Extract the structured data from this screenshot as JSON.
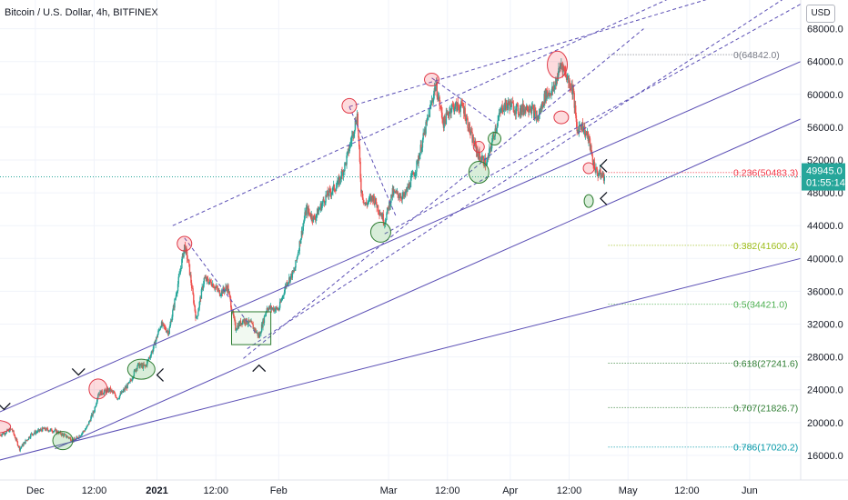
{
  "header": {
    "title": "Bitcoin / U.S. Dollar, 4h, BITFINEX",
    "currency_button": "USD"
  },
  "price_tag": {
    "price": "49945.0",
    "countdown": "01:55:14",
    "color": "#26a69a"
  },
  "colors": {
    "up": "#26a69a",
    "down": "#ef5350",
    "trendline": "#5b4fb5",
    "dashed": "#5b4fb5"
  },
  "chart_data": {
    "type": "candlestick",
    "title": "Bitcoin / U.S. Dollar, 4h, BITFINEX",
    "ylim": [
      13000,
      71500
    ],
    "y_ticks": [
      16000,
      20000,
      24000,
      28000,
      32000,
      36000,
      40000,
      44000,
      48000,
      52000,
      56000,
      60000,
      64000,
      68000
    ],
    "y_tick_labels": [
      "16000.0",
      "20000.0",
      "24000.0",
      "28000.0",
      "32000.0",
      "36000.0",
      "40000.0",
      "44000.0",
      "48000.0",
      "52000.0",
      "56000.0",
      "60000.0",
      "64000.0",
      "68000.0"
    ],
    "x_tick_labels": [
      {
        "label": "Dec",
        "date": "2020-12-01",
        "bold": false
      },
      {
        "label": "12:00",
        "date": "2020-12-16",
        "bold": false
      },
      {
        "label": "2021",
        "date": "2021-01-01",
        "bold": true
      },
      {
        "label": "12:00",
        "date": "2021-01-16",
        "bold": false
      },
      {
        "label": "Feb",
        "date": "2021-02-01",
        "bold": false
      },
      {
        "label": "Mar",
        "date": "2021-03-01",
        "bold": false
      },
      {
        "label": "12:00",
        "date": "2021-03-16",
        "bold": false
      },
      {
        "label": "Apr",
        "date": "2021-04-01",
        "bold": false
      },
      {
        "label": "12:00",
        "date": "2021-04-16",
        "bold": false
      },
      {
        "label": "May",
        "date": "2021-05-01",
        "bold": false
      },
      {
        "label": "12:00",
        "date": "2021-05-16",
        "bold": false
      },
      {
        "label": "Jun",
        "date": "2021-06-01",
        "bold": false
      }
    ],
    "x_domain": [
      "2020-11-22",
      "2021-06-14"
    ],
    "price_path": [
      [
        "2020-11-22",
        18500
      ],
      [
        "2020-11-25",
        19200
      ],
      [
        "2020-11-27",
        16800
      ],
      [
        "2020-11-30",
        18600
      ],
      [
        "2020-12-03",
        19200
      ],
      [
        "2020-12-06",
        19000
      ],
      [
        "2020-12-09",
        18300
      ],
      [
        "2020-12-11",
        17800
      ],
      [
        "2020-12-14",
        19300
      ],
      [
        "2020-12-16",
        21500
      ],
      [
        "2020-12-17",
        23500
      ],
      [
        "2020-12-20",
        24000
      ],
      [
        "2020-12-22",
        23000
      ],
      [
        "2020-12-25",
        24800
      ],
      [
        "2020-12-27",
        27000
      ],
      [
        "2020-12-29",
        26800
      ],
      [
        "2020-12-31",
        29000
      ],
      [
        "2021-01-02",
        32000
      ],
      [
        "2021-01-04",
        31000
      ],
      [
        "2021-01-06",
        36000
      ],
      [
        "2021-01-08",
        41500
      ],
      [
        "2021-01-09",
        39500
      ],
      [
        "2021-01-11",
        32500
      ],
      [
        "2021-01-13",
        37500
      ],
      [
        "2021-01-15",
        37000
      ],
      [
        "2021-01-17",
        35800
      ],
      [
        "2021-01-19",
        36500
      ],
      [
        "2021-01-21",
        31500
      ],
      [
        "2021-01-23",
        32500
      ],
      [
        "2021-01-25",
        32000
      ],
      [
        "2021-01-27",
        30500
      ],
      [
        "2021-01-29",
        34000
      ],
      [
        "2021-02-01",
        33800
      ],
      [
        "2021-02-03",
        37000
      ],
      [
        "2021-02-05",
        38500
      ],
      [
        "2021-02-08",
        46000
      ],
      [
        "2021-02-10",
        44800
      ],
      [
        "2021-02-13",
        47500
      ],
      [
        "2021-02-16",
        49000
      ],
      [
        "2021-02-18",
        51500
      ],
      [
        "2021-02-21",
        57500
      ],
      [
        "2021-02-22",
        48500
      ],
      [
        "2021-02-23",
        46500
      ],
      [
        "2021-02-25",
        47500
      ],
      [
        "2021-02-28",
        44500
      ],
      [
        "2021-03-02",
        48000
      ],
      [
        "2021-03-05",
        47500
      ],
      [
        "2021-03-08",
        51000
      ],
      [
        "2021-03-11",
        57000
      ],
      [
        "2021-03-13",
        61200
      ],
      [
        "2021-03-15",
        56500
      ],
      [
        "2021-03-17",
        58500
      ],
      [
        "2021-03-20",
        58500
      ],
      [
        "2021-03-22",
        55000
      ],
      [
        "2021-03-24",
        52500
      ],
      [
        "2021-03-26",
        51500
      ],
      [
        "2021-03-28",
        55500
      ],
      [
        "2021-03-30",
        58500
      ],
      [
        "2021-04-01",
        58800
      ],
      [
        "2021-04-03",
        58000
      ],
      [
        "2021-04-06",
        58600
      ],
      [
        "2021-04-08",
        57000
      ],
      [
        "2021-04-10",
        60000
      ],
      [
        "2021-04-12",
        60500
      ],
      [
        "2021-04-14",
        63800
      ],
      [
        "2021-04-16",
        61500
      ],
      [
        "2021-04-17",
        60500
      ],
      [
        "2021-04-18",
        55500
      ],
      [
        "2021-04-19",
        56500
      ],
      [
        "2021-04-21",
        54500
      ],
      [
        "2021-04-22",
        52000
      ],
      [
        "2021-04-23",
        50500
      ],
      [
        "2021-04-25",
        49945
      ]
    ],
    "fib_levels": [
      {
        "label": "0(64842.0)",
        "value": 64842.0,
        "color": "#787b86"
      },
      {
        "label": "0.236(50483.3)",
        "value": 50483.3,
        "color": "#f23645"
      },
      {
        "label": "0.382(41600.4)",
        "value": 41600.4,
        "color": "#9dbd1a"
      },
      {
        "label": "0.5(34421.0)",
        "value": 34421.0,
        "color": "#4caf50"
      },
      {
        "label": "0.618(27241.6)",
        "value": 27241.6,
        "color": "#2e7d32"
      },
      {
        "label": "0.707(21826.7)",
        "value": 21826.7,
        "color": "#2e7d32"
      },
      {
        "label": "0.786(17020.2)",
        "value": 17020.2,
        "color": "#0097a7"
      }
    ],
    "trendlines": [
      {
        "from": [
          "2020-11-10",
          18800
        ],
        "to": [
          "2021-06-14",
          64000
        ]
      },
      {
        "from": [
          "2020-12-06",
          16800
        ],
        "to": [
          "2021-06-14",
          57000
        ]
      },
      {
        "from": [
          "2020-11-10",
          14000
        ],
        "to": [
          "2021-06-14",
          40000
        ]
      }
    ],
    "channel_dashed": [
      {
        "from": [
          "2021-01-05",
          44000
        ],
        "to": [
          "2021-06-14",
          79000
        ]
      },
      {
        "from": [
          "2021-01-23",
          27800
        ],
        "to": [
          "2021-05-05",
          68000
        ]
      },
      {
        "from": [
          "2021-01-24",
          29000
        ],
        "to": [
          "2021-06-14",
          73000
        ]
      },
      {
        "from": [
          "2021-02-28",
          43000
        ],
        "to": [
          "2021-06-14",
          71000
        ]
      },
      {
        "from": [
          "2021-02-19",
          58500
        ],
        "to": [
          "2021-06-14",
          75000
        ]
      },
      {
        "from": [
          "2021-01-08",
          42500
        ],
        "to": [
          "2021-01-26",
          31000
        ]
      },
      {
        "from": [
          "2021-02-19",
          58500
        ],
        "to": [
          "2021-03-03",
          45000
        ]
      },
      {
        "from": [
          "2021-03-12",
          62000
        ],
        "to": [
          "2021-03-28",
          56500
        ]
      }
    ],
    "rect_zone": {
      "from": [
        "2021-01-20",
        33500
      ],
      "to": [
        "2021-01-30",
        29500
      ]
    },
    "highlight_circles": [
      {
        "date": "2020-11-21",
        "price": 19500,
        "color": "red",
        "rx": 16,
        "ry": 7
      },
      {
        "date": "2020-12-17",
        "price": 24100,
        "color": "red",
        "rx": 10,
        "ry": 11
      },
      {
        "date": "2021-01-08",
        "price": 41800,
        "color": "red",
        "rx": 8,
        "ry": 8
      },
      {
        "date": "2021-02-19",
        "price": 58600,
        "color": "red",
        "rx": 8,
        "ry": 8
      },
      {
        "date": "2021-03-12",
        "price": 61800,
        "color": "red",
        "rx": 8,
        "ry": 7
      },
      {
        "date": "2021-03-24",
        "price": 53600,
        "color": "red",
        "rx": 6,
        "ry": 6
      },
      {
        "date": "2021-04-13",
        "price": 63600,
        "color": "red",
        "rx": 11,
        "ry": 15
      },
      {
        "date": "2021-04-14",
        "price": 57200,
        "color": "red",
        "rx": 8,
        "ry": 7
      },
      {
        "date": "2021-04-21",
        "price": 51000,
        "color": "red",
        "rx": 6,
        "ry": 6
      },
      {
        "date": "2020-12-08",
        "price": 17800,
        "color": "green",
        "rx": 11,
        "ry": 10
      },
      {
        "date": "2020-12-28",
        "price": 26500,
        "color": "green",
        "rx": 15,
        "ry": 11
      },
      {
        "date": "2021-02-27",
        "price": 43200,
        "color": "green",
        "rx": 11,
        "ry": 11
      },
      {
        "date": "2021-03-24",
        "price": 50500,
        "color": "green",
        "rx": 11,
        "ry": 12
      },
      {
        "date": "2021-03-28",
        "price": 54600,
        "color": "green",
        "rx": 7,
        "ry": 7
      },
      {
        "date": "2021-04-21",
        "price": 47000,
        "color": "green",
        "rx": 5,
        "ry": 7
      }
    ],
    "arrow_marks": [
      {
        "date": "2020-11-23",
        "price": 21600,
        "dir": "down"
      },
      {
        "date": "2020-12-12",
        "price": 25800,
        "dir": "down"
      },
      {
        "date": "2021-01-01",
        "price": 25800,
        "dir": "left"
      },
      {
        "date": "2021-01-27",
        "price": 27000,
        "dir": "up"
      },
      {
        "date": "2021-04-24",
        "price": 51300,
        "dir": "left"
      },
      {
        "date": "2021-04-24",
        "price": 47300,
        "dir": "left"
      }
    ]
  }
}
